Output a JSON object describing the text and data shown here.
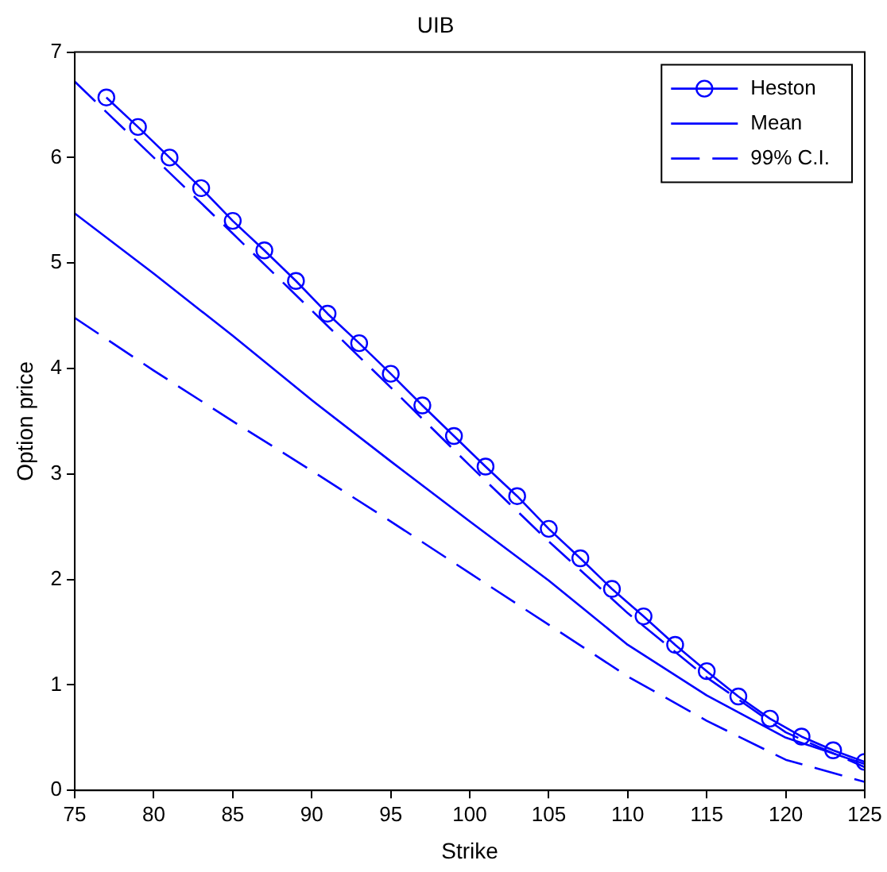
{
  "chart_data": {
    "type": "line",
    "title": "UIB",
    "xlabel": "Strike",
    "ylabel": "Option price",
    "xlim": [
      75,
      125
    ],
    "xticks": [
      75,
      80,
      85,
      90,
      95,
      100,
      105,
      110,
      115,
      120,
      125
    ],
    "ylim": [
      0,
      7
    ],
    "yticks": [
      0,
      1,
      2,
      3,
      4,
      5,
      6,
      7
    ],
    "grid": false,
    "legend": "top right",
    "series": [
      {
        "name": "Heston",
        "color": "#0000ff",
        "marker": "circle",
        "line_style": "solid",
        "x": [
          77,
          79,
          81,
          83,
          85,
          87,
          89,
          91,
          93,
          95,
          97,
          99,
          101,
          103,
          105,
          107,
          109,
          111,
          113,
          115,
          117,
          119,
          121,
          123,
          125
        ],
        "values": [
          6.57,
          6.29,
          6.0,
          5.71,
          5.4,
          5.12,
          4.83,
          4.52,
          4.24,
          3.95,
          3.65,
          3.36,
          3.07,
          2.79,
          2.48,
          2.2,
          1.91,
          1.65,
          1.38,
          1.13,
          0.89,
          0.68,
          0.51,
          0.38,
          0.27
        ]
      },
      {
        "name": "Mean",
        "color": "#0000ff",
        "marker": "none",
        "line_style": "solid",
        "x": [
          75,
          80,
          85,
          90,
          95,
          100,
          105,
          110,
          115,
          120,
          125
        ],
        "values": [
          5.47,
          4.9,
          4.31,
          3.7,
          3.12,
          2.55,
          1.99,
          1.38,
          0.9,
          0.5,
          0.25
        ]
      },
      {
        "name": "99% C.I.",
        "color": "#0000ff",
        "marker": "none",
        "line_style": "dashed",
        "x": [
          75,
          80,
          85,
          90,
          95,
          100,
          105,
          110,
          115,
          120,
          125
        ],
        "values": [
          4.48,
          3.98,
          3.5,
          3.03,
          2.55,
          2.06,
          1.57,
          1.08,
          0.66,
          0.29,
          0.08
        ]
      },
      {
        "color": "#0000ff",
        "marker": "none",
        "line_style": "dashed",
        "x": [
          75,
          80,
          85,
          90,
          95,
          100,
          105,
          110,
          115,
          120,
          125
        ],
        "values": [
          6.72,
          6.0,
          5.28,
          4.55,
          3.82,
          3.08,
          2.36,
          1.68,
          1.07,
          0.55,
          0.22
        ]
      }
    ]
  }
}
